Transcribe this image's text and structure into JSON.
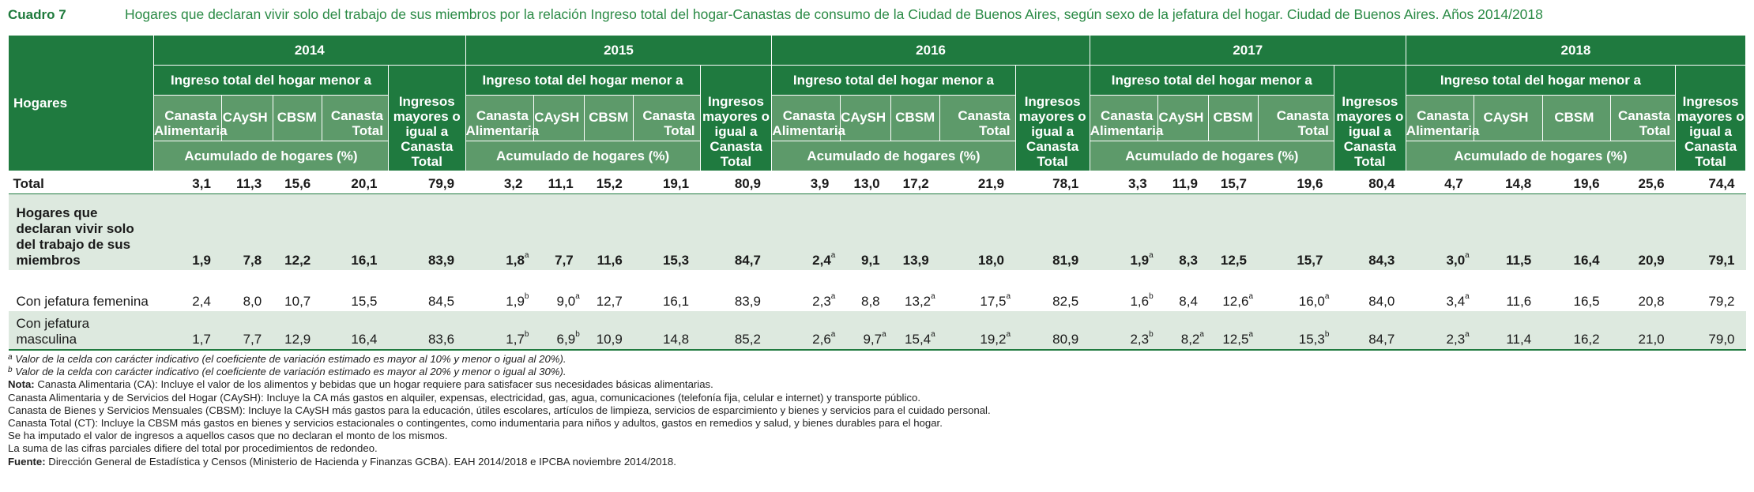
{
  "header": {
    "cuadro": "Cuadro 7",
    "title": "Hogares que declaran vivir solo del trabajo de sus miembros por la relación Ingreso total del hogar-Canastas de consumo de la Ciudad de Buenos Aires, según sexo de la jefatura del hogar. Ciudad de Buenos Aires. Años 2014/2018"
  },
  "table": {
    "row_header": "Hogares",
    "years": [
      "2014",
      "2015",
      "2016",
      "2017",
      "2018"
    ],
    "group_label": "Ingreso total del hogar menor a",
    "right_label": "Ingresos mayores o igual a Canasta Total",
    "sub_cols": [
      "Canasta Alimentaria",
      "CAySH",
      "CBSM",
      "Canasta Total"
    ],
    "acum_label": "Acumulado de hogares (%)",
    "rows": [
      {
        "label": "Total",
        "cells": [
          [
            {
              "v": "3,1"
            },
            {
              "v": "11,3"
            },
            {
              "v": "15,6"
            },
            {
              "v": "20,1"
            },
            {
              "v": "79,9"
            }
          ],
          [
            {
              "v": "3,2"
            },
            {
              "v": "11,1"
            },
            {
              "v": "15,2"
            },
            {
              "v": "19,1"
            },
            {
              "v": "80,9"
            }
          ],
          [
            {
              "v": "3,9"
            },
            {
              "v": "13,0"
            },
            {
              "v": "17,2"
            },
            {
              "v": "21,9"
            },
            {
              "v": "78,1"
            }
          ],
          [
            {
              "v": "3,3"
            },
            {
              "v": "11,9"
            },
            {
              "v": "15,7"
            },
            {
              "v": "19,6"
            },
            {
              "v": "80,4"
            }
          ],
          [
            {
              "v": "4,7"
            },
            {
              "v": "14,8"
            },
            {
              "v": "19,6"
            },
            {
              "v": "25,6"
            },
            {
              "v": "74,4"
            }
          ]
        ]
      },
      {
        "label": "Hogares que declaran vivir solo del trabajo de sus miembros",
        "cells": [
          [
            {
              "v": "1,9"
            },
            {
              "v": "7,8"
            },
            {
              "v": "12,2"
            },
            {
              "v": "16,1"
            },
            {
              "v": "83,9"
            }
          ],
          [
            {
              "v": "1,8",
              "s": "a"
            },
            {
              "v": "7,7"
            },
            {
              "v": "11,6"
            },
            {
              "v": "15,3"
            },
            {
              "v": "84,7"
            }
          ],
          [
            {
              "v": "2,4",
              "s": "a"
            },
            {
              "v": "9,1"
            },
            {
              "v": "13,9"
            },
            {
              "v": "18,0"
            },
            {
              "v": "81,9"
            }
          ],
          [
            {
              "v": "1,9",
              "s": "a"
            },
            {
              "v": "8,3"
            },
            {
              "v": "12,5"
            },
            {
              "v": "15,7"
            },
            {
              "v": "84,3"
            }
          ],
          [
            {
              "v": "3,0",
              "s": "a"
            },
            {
              "v": "11,5"
            },
            {
              "v": "16,4"
            },
            {
              "v": "20,9"
            },
            {
              "v": "79,1"
            }
          ]
        ]
      },
      {
        "label": "Con jefatura femenina",
        "cells": [
          [
            {
              "v": "2,4"
            },
            {
              "v": "8,0"
            },
            {
              "v": "10,7"
            },
            {
              "v": "15,5"
            },
            {
              "v": "84,5"
            }
          ],
          [
            {
              "v": "1,9",
              "s": "b"
            },
            {
              "v": "9,0",
              "s": "a"
            },
            {
              "v": "12,7"
            },
            {
              "v": "16,1"
            },
            {
              "v": "83,9"
            }
          ],
          [
            {
              "v": "2,3",
              "s": "a"
            },
            {
              "v": "8,8"
            },
            {
              "v": "13,2",
              "s": "a"
            },
            {
              "v": "17,5",
              "s": "a"
            },
            {
              "v": "82,5"
            }
          ],
          [
            {
              "v": "1,6",
              "s": "b"
            },
            {
              "v": "8,4"
            },
            {
              "v": "12,6",
              "s": "a"
            },
            {
              "v": "16,0",
              "s": "a"
            },
            {
              "v": "84,0"
            }
          ],
          [
            {
              "v": "3,4",
              "s": "a"
            },
            {
              "v": "11,6"
            },
            {
              "v": "16,5"
            },
            {
              "v": "20,8"
            },
            {
              "v": "79,2"
            }
          ]
        ]
      },
      {
        "label": "Con jefatura masculina",
        "cells": [
          [
            {
              "v": "1,7"
            },
            {
              "v": "7,7"
            },
            {
              "v": "12,9"
            },
            {
              "v": "16,4"
            },
            {
              "v": "83,6"
            }
          ],
          [
            {
              "v": "1,7",
              "s": "b"
            },
            {
              "v": "6,9",
              "s": "b"
            },
            {
              "v": "10,9"
            },
            {
              "v": "14,8"
            },
            {
              "v": "85,2"
            }
          ],
          [
            {
              "v": "2,6",
              "s": "a"
            },
            {
              "v": "9,7",
              "s": "a"
            },
            {
              "v": "15,4",
              "s": "a"
            },
            {
              "v": "19,2",
              "s": "a"
            },
            {
              "v": "80,9"
            }
          ],
          [
            {
              "v": "2,3",
              "s": "b"
            },
            {
              "v": "8,2",
              "s": "a"
            },
            {
              "v": "12,5",
              "s": "a"
            },
            {
              "v": "15,3",
              "s": "b"
            },
            {
              "v": "84,7"
            }
          ],
          [
            {
              "v": "2,3",
              "s": "a"
            },
            {
              "v": "11,4"
            },
            {
              "v": "16,2"
            },
            {
              "v": "21,0"
            },
            {
              "v": "79,0"
            }
          ]
        ]
      }
    ]
  },
  "notes": {
    "note_a_mark": "a",
    "note_a": "Valor de la celda con carácter indicativo (el coeficiente de variación estimado es mayor al 10% y menor o igual al 20%).",
    "note_b_mark": "b",
    "note_b": "Valor de la celda con carácter indicativo (el coeficiente de variación estimado es mayor al 20% y menor o igual al 30%).",
    "nota_label": "Nota:",
    "nota_text": "Canasta Alimentaria (CA): Incluye el valor de los alimentos y bebidas que un hogar requiere para satisfacer sus necesidades básicas alimentarias.",
    "line2": "Canasta Alimentaria y de Servicios del Hogar (CAySH): Incluye la CA más gastos en alquiler, expensas, electricidad, gas, agua, comunicaciones (telefonía fija, celular e internet) y transporte público.",
    "line3": "Canasta de Bienes y Servicios Mensuales (CBSM): Incluye la CAySH más gastos para la educación, útiles escolares, artículos de limpieza, servicios de esparcimiento y bienes y servicios para el cuidado personal.",
    "line4": "Canasta Total (CT): Incluye la CBSM más gastos en bienes y servicios estacionales o contingentes, como indumentaria para niños y adultos, gastos en remedios y salud, y bienes durables para el hogar.",
    "line5": "Se ha imputado el valor de ingresos a aquellos casos que no declaran el monto de los mismos.",
    "line6": "La suma de las cifras parciales difiere del total por procedimientos de redondeo.",
    "fuente_label": "Fuente:",
    "fuente_text": "Dirección General de Estadística y Censos (Ministerio de Hacienda y Finanzas GCBA). EAH 2014/2018 e IPCBA noviembre 2014/2018."
  }
}
